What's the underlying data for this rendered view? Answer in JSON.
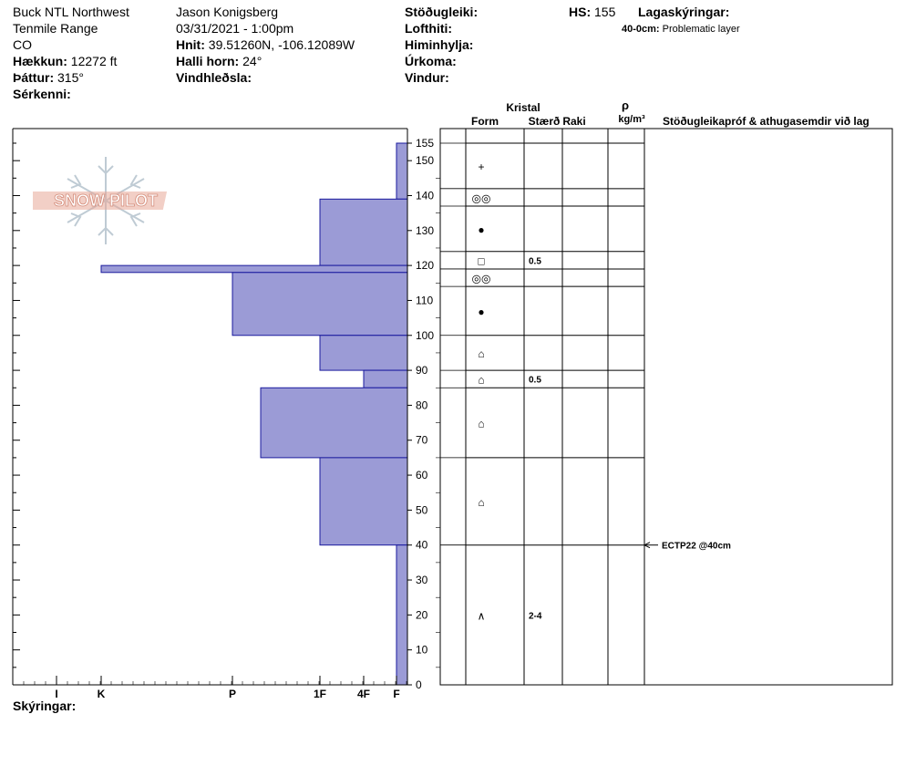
{
  "header": {
    "location": "Buck NTL Northwest",
    "range": "Tenmile Range",
    "state": "CO",
    "elevation_label": "Hækkun:",
    "elevation_value": "12272 ft",
    "aspect_label": "Þáttur:",
    "aspect_value": "315°",
    "features_label": "Sérkenni:",
    "observer": "Jason Konigsberg",
    "datetime": "03/31/2021 - 1:00pm",
    "coords_label": "Hnit:",
    "coords_value": "39.51260N, -106.12089W",
    "slope_label": "Halli horn:",
    "slope_value": "24°",
    "windload_label": "Vindhleðsla:",
    "stability_label": "Stöðugleiki:",
    "airtemp_label": "Lofthiti:",
    "sky_label": "Himinhylja:",
    "precip_label": "Úrkoma:",
    "wind_label": "Vindur:",
    "hs_label": "HS:",
    "hs_value": "155",
    "layer_notes_label": "Lagaskýringar:",
    "layer_notes_range": "40-0cm:",
    "layer_notes_text": "Problematic layer"
  },
  "logo_text": "SNOW PILOT",
  "columns": {
    "crystal": "Kristal",
    "form": "Form",
    "size": "Stærð",
    "moisture": "Raki",
    "rho": "ρ",
    "density_unit": "kg/m³",
    "stability_tests": "Stöðugleikapróf & athugasemdir við lag"
  },
  "comments_label": "Skýringar:",
  "chart_data": {
    "type": "bar",
    "orientation": "horizontal",
    "y_axis": {
      "range": [
        0,
        155
      ],
      "ticks": [
        0,
        10,
        20,
        30,
        40,
        50,
        60,
        70,
        80,
        90,
        100,
        110,
        120,
        130,
        140,
        150,
        155
      ],
      "unit": "cm"
    },
    "x_axis": {
      "hardness_ticks": [
        "I",
        "K",
        "P",
        "1F",
        "4F",
        "F"
      ]
    },
    "layers": [
      {
        "top": 155,
        "bottom": 139,
        "hardness": "F"
      },
      {
        "top": 139,
        "bottom": 120,
        "hardness": "1F"
      },
      {
        "top": 120,
        "bottom": 118,
        "hardness": "K"
      },
      {
        "top": 118,
        "bottom": 100,
        "hardness": "P"
      },
      {
        "top": 100,
        "bottom": 90,
        "hardness": "1F"
      },
      {
        "top": 90,
        "bottom": 85,
        "hardness": "4F"
      },
      {
        "top": 85,
        "bottom": 65,
        "hardness": "P-"
      },
      {
        "top": 65,
        "bottom": 40,
        "hardness": "1F"
      },
      {
        "top": 40,
        "bottom": 0,
        "hardness": "F"
      }
    ],
    "crystal_layers": [
      {
        "top": 155,
        "bottom": 142,
        "symbol": "+",
        "size": ""
      },
      {
        "top": 142,
        "bottom": 137,
        "symbol": "◎◎",
        "size": ""
      },
      {
        "top": 137,
        "bottom": 124,
        "symbol": "●",
        "size": ""
      },
      {
        "top": 124,
        "bottom": 119,
        "symbol": "□",
        "size": "0.5"
      },
      {
        "top": 119,
        "bottom": 114,
        "symbol": "◎◎",
        "size": ""
      },
      {
        "top": 114,
        "bottom": 100,
        "symbol": "●",
        "size": ""
      },
      {
        "top": 100,
        "bottom": 90,
        "symbol": "⌂",
        "size": ""
      },
      {
        "top": 90,
        "bottom": 85,
        "symbol": "⌂",
        "size": "0.5"
      },
      {
        "top": 85,
        "bottom": 65,
        "symbol": "⌂",
        "size": ""
      },
      {
        "top": 65,
        "bottom": 40,
        "symbol": "⌂",
        "size": ""
      },
      {
        "top": 40,
        "bottom": 0,
        "symbol": "∧",
        "size": "2-4"
      }
    ],
    "stability_tests": [
      {
        "depth": 40,
        "text": "ECTP22 @40cm"
      }
    ],
    "colors": {
      "bar_fill": "#9b9bd6",
      "bar_stroke": "#1a1a9e",
      "logo": "#e8a898"
    }
  }
}
